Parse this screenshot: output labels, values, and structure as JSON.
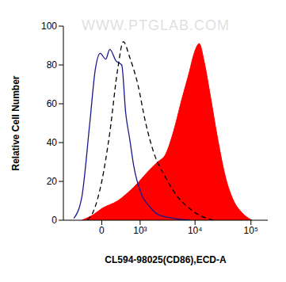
{
  "chart_data": {
    "type": "line",
    "xlabel": "CL594-98025(CD86),ECD-A",
    "ylabel": "Relative Cell Number",
    "annotations": [
      "WWW.PTGLAB.COM"
    ],
    "xlim": [
      -1000,
      200000
    ],
    "xticks": [
      0,
      {
        "value": 1000,
        "label": "10³"
      },
      {
        "value": 10000,
        "label": "10⁴"
      },
      {
        "value": 100000,
        "label": "10⁵"
      }
    ],
    "ylim": [
      0,
      100
    ],
    "yticks": [
      0,
      20,
      40,
      60,
      80,
      100
    ],
    "grid": false,
    "series": [
      {
        "type": "line",
        "color": "#1a1a8c",
        "line_style": "solid",
        "x": [
          -610,
          -394,
          -221,
          -114,
          -28,
          71,
          144,
          270,
          394,
          497,
          610,
          744,
          1072,
          1519,
          2130,
          4140,
          8000
        ],
        "values": [
          1,
          12,
          50,
          78,
          86,
          83,
          88,
          82,
          80,
          55,
          42,
          28,
          13,
          7,
          3,
          1,
          0
        ]
      },
      {
        "type": "line",
        "color": "#000000",
        "line_style": "dashed",
        "x": [
          -270,
          -144,
          0,
          144,
          304,
          434,
          610,
          900,
          1278,
          1797,
          2967,
          4900,
          8000,
          13100,
          21500
        ],
        "values": [
          0,
          5,
          20,
          45,
          78,
          92,
          84,
          70,
          50,
          35,
          22,
          12,
          6,
          2,
          0
        ]
      },
      {
        "type": "area",
        "color": "#ff0000",
        "line_style": "solid",
        "x": [
          -394,
          -144,
          0,
          304,
          744,
          1519,
          2130,
          2967,
          4140,
          5760,
          8000,
          9400,
          11900,
          14500,
          18300,
          25400,
          35200,
          49000,
          68300,
          104000
        ],
        "values": [
          0,
          3,
          6,
          10,
          17,
          26,
          30,
          34,
          46,
          62,
          77,
          85,
          91,
          82,
          66,
          42,
          22,
          10,
          4,
          0
        ]
      }
    ]
  }
}
